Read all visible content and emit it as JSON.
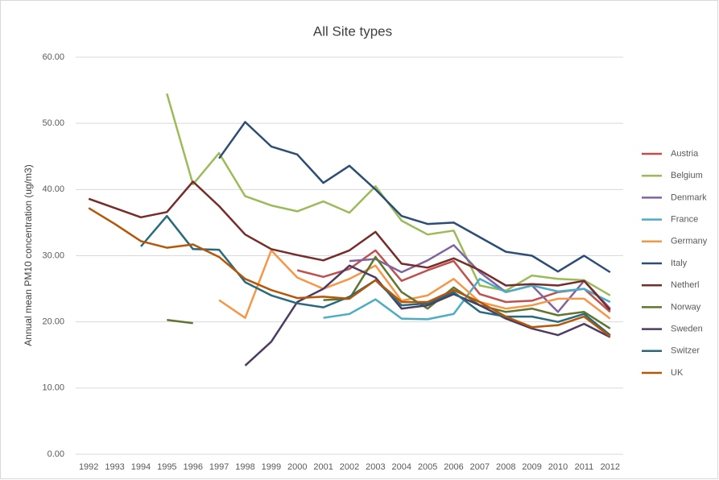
{
  "chart_data": {
    "type": "line",
    "title": "All Site types",
    "y_label": "Annual mean PM10 concentration (ug/m3)",
    "categories": [
      "1992",
      "1993",
      "1994",
      "1995",
      "1996",
      "1997",
      "1998",
      "1999",
      "2000",
      "2001",
      "2002",
      "2003",
      "2004",
      "2005",
      "2006",
      "2007",
      "2008",
      "2009",
      "2010",
      "2011",
      "2012"
    ],
    "ylim": [
      0,
      60
    ],
    "yticks": [
      {
        "value": 0,
        "label": "0.00"
      },
      {
        "value": 10,
        "label": "10.00"
      },
      {
        "value": 20,
        "label": "20.00"
      },
      {
        "value": 30,
        "label": "30.00"
      },
      {
        "value": 40,
        "label": "40.00"
      },
      {
        "value": 50,
        "label": "50.00"
      },
      {
        "value": 60,
        "label": "60.00"
      }
    ],
    "grid": true,
    "legend": "right",
    "series": [
      {
        "name": "Austria",
        "color": "#c0504d",
        "values": [
          null,
          null,
          null,
          null,
          null,
          null,
          null,
          null,
          27.8,
          26.8,
          28.0,
          30.8,
          26.2,
          27.8,
          29.2,
          24.2,
          23.0,
          23.2,
          24.5,
          25.0,
          21.5
        ]
      },
      {
        "name": "Belgium",
        "color": "#9bbb59",
        "values": [
          null,
          null,
          null,
          54.5,
          40.8,
          45.5,
          39.0,
          37.6,
          36.7,
          38.2,
          36.5,
          40.5,
          35.3,
          33.2,
          33.8,
          25.5,
          24.7,
          27.0,
          26.5,
          26.3,
          24.0
        ]
      },
      {
        "name": "Denmark",
        "color": "#8064a2",
        "values": [
          null,
          null,
          null,
          null,
          null,
          null,
          null,
          null,
          null,
          null,
          29.2,
          29.5,
          27.5,
          29.3,
          31.6,
          27.5,
          24.5,
          25.5,
          21.5,
          26.2,
          22.0
        ]
      },
      {
        "name": "France",
        "color": "#4bacc6",
        "values": [
          null,
          null,
          null,
          null,
          null,
          null,
          null,
          null,
          null,
          20.6,
          21.2,
          23.4,
          20.5,
          20.4,
          21.2,
          26.5,
          24.5,
          25.5,
          24.6,
          25.0,
          23.0
        ]
      },
      {
        "name": "Germany",
        "color": "#f79646",
        "values": [
          null,
          null,
          null,
          null,
          null,
          23.3,
          20.6,
          30.8,
          26.7,
          25.0,
          26.5,
          28.5,
          23.2,
          24.0,
          26.5,
          23.0,
          22.0,
          22.5,
          23.5,
          23.5,
          20.5
        ]
      },
      {
        "name": "Italy",
        "color": "#2c4d75",
        "values": [
          null,
          null,
          null,
          null,
          null,
          44.7,
          50.2,
          46.5,
          45.3,
          41.0,
          43.6,
          40.0,
          36.0,
          34.8,
          35.0,
          32.8,
          30.6,
          30.0,
          27.6,
          30.0,
          27.5
        ]
      },
      {
        "name": "Netherl",
        "color": "#772c2a",
        "values": [
          38.6,
          37.2,
          35.8,
          36.6,
          41.2,
          37.5,
          33.2,
          31.0,
          30.1,
          29.3,
          30.8,
          33.6,
          28.8,
          28.2,
          29.6,
          27.8,
          25.5,
          25.7,
          25.5,
          26.2,
          21.8
        ]
      },
      {
        "name": "Norway",
        "color": "#5f7530",
        "values": [
          null,
          null,
          null,
          20.3,
          19.8,
          null,
          null,
          null,
          null,
          23.3,
          23.5,
          29.8,
          24.5,
          22.0,
          25.2,
          22.5,
          21.5,
          22.0,
          21.0,
          21.5,
          19.0
        ]
      },
      {
        "name": "Sweden",
        "color": "#4d3b62",
        "values": [
          null,
          null,
          null,
          null,
          null,
          null,
          13.4,
          17.0,
          23.0,
          25.0,
          28.5,
          26.7,
          22.0,
          22.5,
          24.2,
          22.5,
          20.5,
          19.0,
          18.0,
          19.7,
          17.7
        ]
      },
      {
        "name": "Switzer",
        "color": "#276a7c",
        "values": [
          null,
          null,
          31.4,
          36.0,
          31.0,
          30.9,
          26.0,
          24.0,
          22.8,
          22.2,
          23.8,
          26.3,
          22.5,
          22.8,
          24.5,
          21.5,
          20.8,
          20.8,
          20.0,
          21.2,
          18.0
        ]
      },
      {
        "name": "UK",
        "color": "#b65708",
        "values": [
          37.2,
          34.8,
          32.2,
          31.2,
          31.7,
          29.8,
          26.5,
          24.8,
          23.6,
          23.8,
          23.5,
          26.3,
          23.0,
          23.0,
          24.8,
          23.0,
          20.8,
          19.2,
          19.5,
          20.8,
          17.8
        ]
      }
    ]
  }
}
